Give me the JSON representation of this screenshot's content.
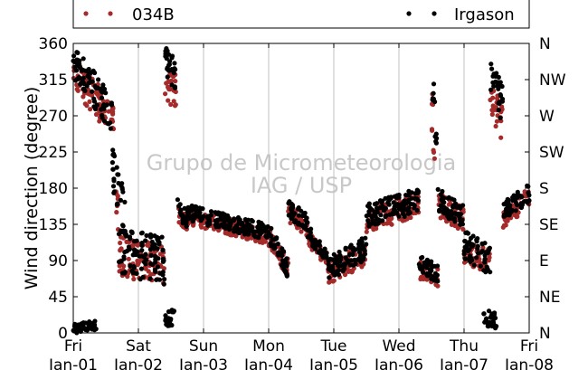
{
  "chart_data": {
    "type": "scatter",
    "ylabel": "Wind direction (degree)",
    "ylim": [
      0,
      360
    ],
    "y_ticks": [
      0,
      45,
      90,
      135,
      180,
      225,
      270,
      315,
      360
    ],
    "y_ticks_right": [
      "N",
      "NE",
      "E",
      "SE",
      "S",
      "SW",
      "W",
      "NW",
      "N"
    ],
    "x_range_days": [
      0,
      7
    ],
    "x_ticks": [
      {
        "day": "Fri",
        "date": "Jan-01"
      },
      {
        "day": "Sat",
        "date": "Jan-02"
      },
      {
        "day": "Sun",
        "date": "Jan-03"
      },
      {
        "day": "Mon",
        "date": "Jan-04"
      },
      {
        "day": "Tue",
        "date": "Jan-05"
      },
      {
        "day": "Wed",
        "date": "Jan-06"
      },
      {
        "day": "Thu",
        "date": "Jan-07"
      },
      {
        "day": "Fri",
        "date": "Jan-08"
      }
    ],
    "grid": "vertical",
    "legend_placement": "top",
    "watermark": [
      "Grupo de Micrometeorologia",
      "IAG / USP"
    ],
    "series": [
      {
        "name": "034B",
        "color": "#a52a2a",
        "segments": [
          {
            "x": [
              0.0,
              0.6
            ],
            "y": [
              325,
              265
            ],
            "spread": 22
          },
          {
            "x": [
              0.6,
              0.62
            ],
            "y": [
              265,
              260
            ],
            "spread": 18
          },
          {
            "x": [
              0.65,
              0.7
            ],
            "y": [
              180,
              150
            ],
            "spread": 30
          },
          {
            "x": [
              0.7,
              1.4
            ],
            "y": [
              95,
              85
            ],
            "spread": 25
          },
          {
            "x": [
              1.4,
              1.58
            ],
            "y": [
              310,
              300
            ],
            "spread": 22
          },
          {
            "x": [
              1.6,
              1.75
            ],
            "y": [
              150,
              135
            ],
            "spread": 10
          },
          {
            "x": [
              1.75,
              3.0
            ],
            "y": [
              145,
              120
            ],
            "spread": 10
          },
          {
            "x": [
              3.0,
              3.3
            ],
            "y": [
              120,
              80
            ],
            "spread": 12
          },
          {
            "x": [
              3.3,
              3.6
            ],
            "y": [
              150,
              130
            ],
            "spread": 12
          },
          {
            "x": [
              3.6,
              3.9
            ],
            "y": [
              120,
              90
            ],
            "spread": 10
          },
          {
            "x": [
              3.9,
              4.5
            ],
            "y": [
              75,
              100
            ],
            "spread": 15
          },
          {
            "x": [
              4.5,
              5.3
            ],
            "y": [
              140,
              160
            ],
            "spread": 15
          },
          {
            "x": [
              5.3,
              5.6
            ],
            "y": [
              80,
              70
            ],
            "spread": 12
          },
          {
            "x": [
              5.5,
              5.55
            ],
            "y": [
              280,
              240
            ],
            "spread": 30
          },
          {
            "x": [
              5.6,
              6.0
            ],
            "y": [
              160,
              140
            ],
            "spread": 15
          },
          {
            "x": [
              6.0,
              6.4
            ],
            "y": [
              100,
              90
            ],
            "spread": 15
          },
          {
            "x": [
              6.4,
              6.6
            ],
            "y": [
              290,
              260
            ],
            "spread": 25
          },
          {
            "x": [
              6.6,
              7.0
            ],
            "y": [
              140,
              170
            ],
            "spread": 12
          }
        ]
      },
      {
        "name": "Irgason",
        "color": "#000000",
        "segments": [
          {
            "x": [
              0.0,
              0.6
            ],
            "y": [
              340,
              270
            ],
            "spread": 22
          },
          {
            "x": [
              0.0,
              0.35
            ],
            "y": [
              5,
              10
            ],
            "spread": 6
          },
          {
            "x": [
              0.6,
              0.8
            ],
            "y": [
              200,
              150
            ],
            "spread": 30
          },
          {
            "x": [
              0.7,
              1.4
            ],
            "y": [
              100,
              90
            ],
            "spread": 30
          },
          {
            "x": [
              1.4,
              1.58
            ],
            "y": [
              340,
              320
            ],
            "spread": 20
          },
          {
            "x": [
              1.4,
              1.55
            ],
            "y": [
              15,
              20
            ],
            "spread": 10
          },
          {
            "x": [
              1.6,
              1.75
            ],
            "y": [
              155,
              140
            ],
            "spread": 12
          },
          {
            "x": [
              1.75,
              3.0
            ],
            "y": [
              150,
              125
            ],
            "spread": 10
          },
          {
            "x": [
              3.0,
              3.3
            ],
            "y": [
              125,
              80
            ],
            "spread": 12
          },
          {
            "x": [
              3.3,
              3.6
            ],
            "y": [
              155,
              135
            ],
            "spread": 12
          },
          {
            "x": [
              3.6,
              3.9
            ],
            "y": [
              125,
              95
            ],
            "spread": 10
          },
          {
            "x": [
              3.9,
              4.5
            ],
            "y": [
              80,
              105
            ],
            "spread": 15
          },
          {
            "x": [
              4.5,
              5.3
            ],
            "y": [
              145,
              165
            ],
            "spread": 15
          },
          {
            "x": [
              5.3,
              5.6
            ],
            "y": [
              85,
              75
            ],
            "spread": 12
          },
          {
            "x": [
              5.5,
              5.58
            ],
            "y": [
              320,
              250
            ],
            "spread": 30
          },
          {
            "x": [
              5.6,
              6.0
            ],
            "y": [
              165,
              145
            ],
            "spread": 15
          },
          {
            "x": [
              6.0,
              6.4
            ],
            "y": [
              110,
              90
            ],
            "spread": 18
          },
          {
            "x": [
              6.4,
              6.6
            ],
            "y": [
              330,
              280
            ],
            "spread": 25
          },
          {
            "x": [
              6.3,
              6.5
            ],
            "y": [
              20,
              15
            ],
            "spread": 10
          },
          {
            "x": [
              6.6,
              7.0
            ],
            "y": [
              150,
              175
            ],
            "spread": 12
          }
        ]
      }
    ]
  }
}
